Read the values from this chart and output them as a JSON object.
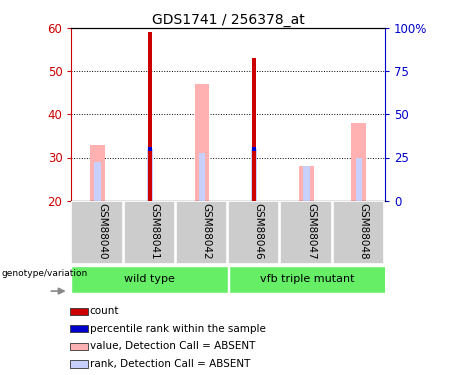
{
  "title": "GDS1741 / 256378_at",
  "samples": [
    "GSM88040",
    "GSM88041",
    "GSM88042",
    "GSM88046",
    "GSM88047",
    "GSM88048"
  ],
  "ylim_left": [
    20,
    60
  ],
  "ylim_right": [
    0,
    100
  ],
  "yticks_left": [
    20,
    30,
    40,
    50,
    60
  ],
  "yticks_right": [
    0,
    25,
    50,
    75,
    100
  ],
  "ytick_labels_right": [
    "0",
    "25",
    "50",
    "75",
    "100%"
  ],
  "count_values": [
    null,
    59,
    null,
    53,
    null,
    null
  ],
  "count_color": "#cc0000",
  "percentile_values": [
    null,
    32,
    null,
    32,
    null,
    null
  ],
  "percentile_color": "#0000cc",
  "value_absent_top": [
    33,
    null,
    47,
    null,
    28,
    38
  ],
  "value_absent_color": "#ffb0b0",
  "rank_absent_top": [
    29,
    32,
    31,
    32,
    28,
    30
  ],
  "rank_absent_color": "#c8d0ff",
  "bar_bottom": 20,
  "bg_color": "#ffffff",
  "left_tick_color": "#cc0000",
  "right_tick_color": "#0000cc",
  "legend_items": [
    {
      "color": "#cc0000",
      "label": "count"
    },
    {
      "color": "#0000cc",
      "label": "percentile rank within the sample"
    },
    {
      "color": "#ffb0b0",
      "label": "value, Detection Call = ABSENT"
    },
    {
      "color": "#c8d0ff",
      "label": "rank, Detection Call = ABSENT"
    }
  ],
  "xlabel_area_color": "#cccccc",
  "group_bar_color": "#66ee66",
  "wildtype_label": "wild type",
  "mutant_label": "vfb triple mutant",
  "geno_label": "genotype/variation"
}
